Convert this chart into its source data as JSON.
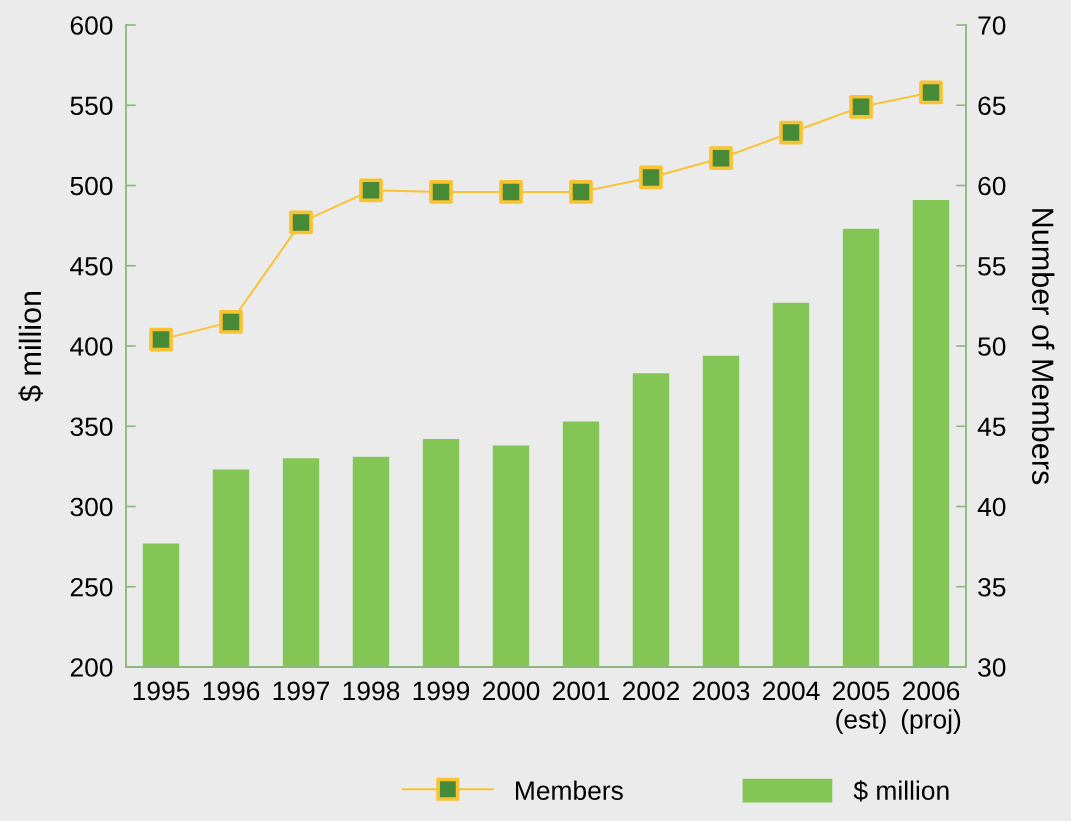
{
  "chart_data": {
    "type": "bar",
    "categories": [
      "1995",
      "1996",
      "1997",
      "1998",
      "1999",
      "2000",
      "2001",
      "2002",
      "2003",
      "2004",
      "2005\n(est)",
      "2006\n(proj)"
    ],
    "ylabel": "$ million",
    "y2label": "Number of Members",
    "ylim": [
      200,
      600
    ],
    "yticks": [
      200,
      250,
      300,
      350,
      400,
      450,
      500,
      550,
      600
    ],
    "y2lim": [
      30,
      70
    ],
    "y2ticks": [
      30,
      35,
      40,
      45,
      50,
      55,
      60,
      65,
      70
    ],
    "legend": "bottom right",
    "series": [
      {
        "name": "Members",
        "type": "line",
        "axis": "y2",
        "marker": "square",
        "line_style": "solid",
        "color": "#f9c232",
        "colors": [
          "#468a37",
          "#468a37",
          "#468a37",
          "#468a37",
          "#468a37",
          "#468a37",
          "#468a37",
          "#468a37",
          "#468a37",
          "#468a37",
          "#468a37",
          "#468a37"
        ],
        "values": [
          50.4,
          51.5,
          57.7,
          59.7,
          59.6,
          59.6,
          59.6,
          60.5,
          61.7,
          63.3,
          64.9,
          65.8
        ]
      },
      {
        "name": "$ million",
        "color": "#84c655",
        "values": [
          277,
          323,
          330,
          331,
          342,
          338,
          353,
          383,
          394,
          427,
          473,
          491
        ]
      }
    ]
  }
}
